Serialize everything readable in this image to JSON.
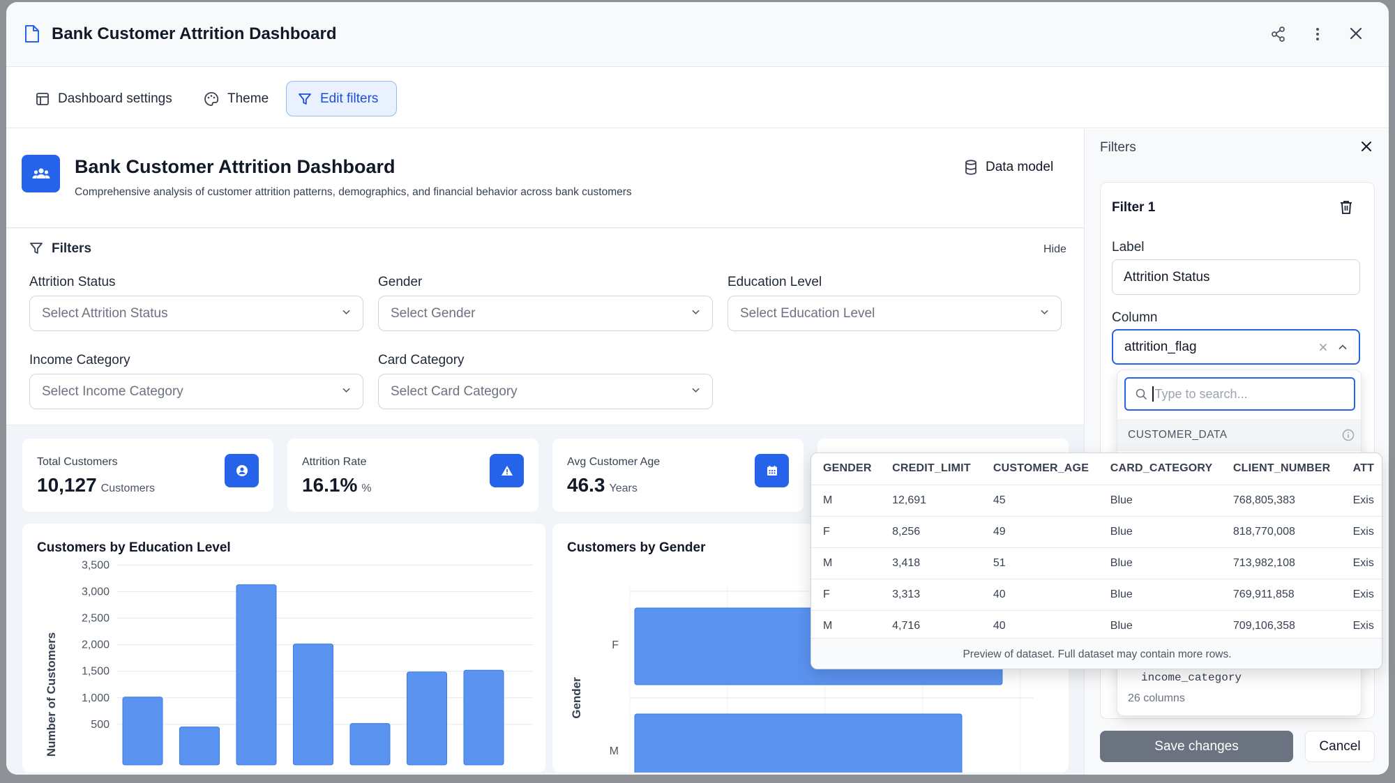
{
  "window": {
    "title": "Bank Customer Attrition Dashboard"
  },
  "toolbar": {
    "settings": "Dashboard settings",
    "theme": "Theme",
    "edit_filters": "Edit filters"
  },
  "header": {
    "title": "Bank Customer Attrition Dashboard",
    "subtitle": "Comprehensive analysis of customer attrition patterns, demographics, and financial behavior across bank customers",
    "data_model": "Data model"
  },
  "filters": {
    "title": "Filters",
    "hide": "Hide",
    "items": [
      {
        "label": "Attrition Status",
        "placeholder": "Select Attrition Status"
      },
      {
        "label": "Gender",
        "placeholder": "Select Gender"
      },
      {
        "label": "Education Level",
        "placeholder": "Select Education Level"
      },
      {
        "label": "Income Category",
        "placeholder": "Select Income Category"
      },
      {
        "label": "Card Category",
        "placeholder": "Select Card Category"
      }
    ]
  },
  "kpis": [
    {
      "title": "Total Customers",
      "value": "10,127",
      "unit": "Customers",
      "icon": "user-icon"
    },
    {
      "title": "Attrition Rate",
      "value": "16.1%",
      "unit": "%",
      "icon": "warning-icon"
    },
    {
      "title": "Avg Customer Age",
      "value": "46.3",
      "unit": "Years",
      "icon": "calendar-icon"
    }
  ],
  "charts": {
    "education_title": "Customers by Education Level",
    "gender_title": "Customers by Gender"
  },
  "chart_data": [
    {
      "type": "bar",
      "title": "Customers by Education Level",
      "ylabel": "Number of Customers",
      "yticks": [
        "500",
        "1,000",
        "1,500",
        "2,000",
        "2,500",
        "3,000",
        "3,500"
      ],
      "ylim": [
        0,
        3500
      ],
      "values": [
        1013,
        451,
        3128,
        2013,
        516,
        1487,
        1519
      ]
    },
    {
      "type": "bar",
      "orientation": "horizontal",
      "title": "Customers by Gender",
      "ylabel": "Gender",
      "categories": [
        "F",
        "M"
      ],
      "values": [
        5358,
        4769
      ]
    }
  ],
  "sidebar": {
    "title": "Filters",
    "filter_name": "Filter 1",
    "label_title": "Label",
    "label_value": "Attrition Status",
    "column_title": "Column",
    "column_value": "attrition_flag",
    "search_placeholder": "Type to search...",
    "dataset": "CUSTOMER_DATA",
    "partial_column": "income_category",
    "column_count": "26 columns",
    "save": "Save changes",
    "cancel": "Cancel"
  },
  "preview": {
    "headers": [
      "GENDER",
      "CREDIT_LIMIT",
      "CUSTOMER_AGE",
      "CARD_CATEGORY",
      "CLIENT_NUMBER",
      "ATT"
    ],
    "rows": [
      [
        "M",
        "12,691",
        "45",
        "Blue",
        "768,805,383",
        "Exis"
      ],
      [
        "F",
        "8,256",
        "49",
        "Blue",
        "818,770,008",
        "Exis"
      ],
      [
        "M",
        "3,418",
        "51",
        "Blue",
        "713,982,108",
        "Exis"
      ],
      [
        "F",
        "3,313",
        "40",
        "Blue",
        "769,911,858",
        "Exis"
      ],
      [
        "M",
        "4,716",
        "40",
        "Blue",
        "709,106,358",
        "Exis"
      ]
    ],
    "footer": "Preview of dataset. Full dataset may contain more rows."
  },
  "colors": {
    "accent": "#2563eb",
    "bar": "#5b93f0",
    "save_disabled": "#6b7280"
  }
}
